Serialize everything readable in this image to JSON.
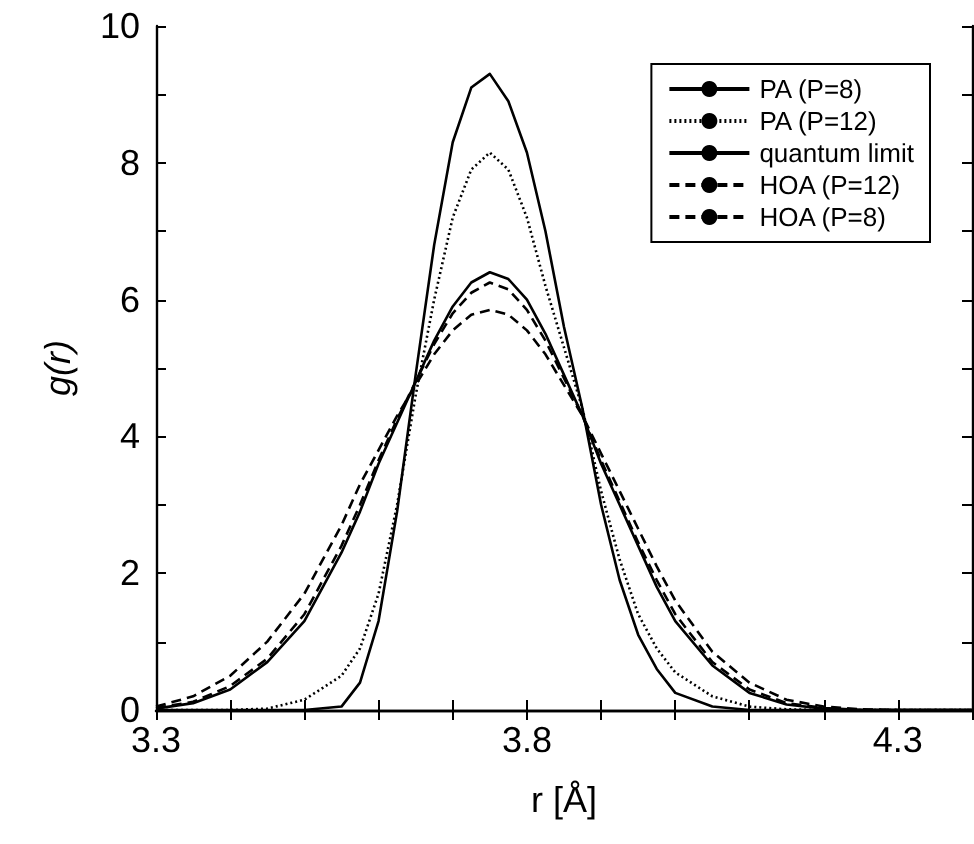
{
  "chart_data": {
    "type": "line",
    "xlabel": "r [Å]",
    "ylabel": "g(r)",
    "x": [
      3.3,
      3.35,
      3.4,
      3.45,
      3.5,
      3.55,
      3.575,
      3.6,
      3.625,
      3.65,
      3.675,
      3.7,
      3.725,
      3.75,
      3.775,
      3.8,
      3.825,
      3.85,
      3.875,
      3.9,
      3.925,
      3.95,
      3.975,
      4.0,
      4.05,
      4.1,
      4.15,
      4.2,
      4.25,
      4.3,
      4.35,
      4.4
    ],
    "series": [
      {
        "name": "PA (P=8)",
        "color": "#000000",
        "line_style": "solid",
        "values": [
          0,
          0,
          0,
          0,
          0,
          0.05,
          0.4,
          1.3,
          2.9,
          4.9,
          6.8,
          8.3,
          9.1,
          9.3,
          8.9,
          8.15,
          7.0,
          5.6,
          4.4,
          3.0,
          1.9,
          1.1,
          0.6,
          0.25,
          0.05,
          0,
          0,
          0,
          0,
          0,
          0,
          0
        ]
      },
      {
        "name": "PA (P=12)",
        "color": "#000000",
        "line_style": "dotted",
        "values": [
          0,
          0,
          0,
          0.02,
          0.15,
          0.5,
          0.9,
          1.7,
          3.0,
          4.6,
          6.0,
          7.2,
          7.9,
          8.15,
          7.9,
          7.2,
          6.2,
          5.3,
          4.4,
          3.2,
          2.2,
          1.4,
          0.9,
          0.55,
          0.2,
          0.05,
          0.01,
          0,
          0,
          0,
          0,
          0
        ]
      },
      {
        "name": "quantum limit",
        "color": "#000000",
        "line_style": "solid",
        "values": [
          0.02,
          0.1,
          0.3,
          0.7,
          1.3,
          2.3,
          2.9,
          3.6,
          4.2,
          4.8,
          5.4,
          5.9,
          6.25,
          6.4,
          6.3,
          6.0,
          5.5,
          4.9,
          4.3,
          3.6,
          3.0,
          2.4,
          1.8,
          1.3,
          0.65,
          0.25,
          0.08,
          0.02,
          0,
          0,
          0,
          0
        ]
      },
      {
        "name": "HOA (P=12)",
        "color": "#000000",
        "line_style": "dashed",
        "values": [
          0.03,
          0.12,
          0.35,
          0.75,
          1.4,
          2.4,
          3.0,
          3.65,
          4.25,
          4.8,
          5.35,
          5.8,
          6.1,
          6.25,
          6.15,
          5.85,
          5.4,
          4.85,
          4.3,
          3.65,
          3.05,
          2.45,
          1.9,
          1.4,
          0.7,
          0.3,
          0.1,
          0.03,
          0,
          0,
          0,
          0
        ]
      },
      {
        "name": "HOA (P=8)",
        "color": "#000000",
        "line_style": "dashed",
        "values": [
          0.05,
          0.2,
          0.5,
          1.0,
          1.7,
          2.7,
          3.3,
          3.8,
          4.3,
          4.75,
          5.2,
          5.55,
          5.78,
          5.85,
          5.78,
          5.55,
          5.2,
          4.75,
          4.3,
          3.75,
          3.2,
          2.65,
          2.1,
          1.6,
          0.85,
          0.4,
          0.15,
          0.05,
          0.01,
          0,
          0,
          0
        ]
      }
    ],
    "xlim": [
      3.3,
      4.4
    ],
    "xticks": [
      3.3,
      {
        "value": 3.4,
        "label": null
      },
      {
        "value": 3.5,
        "label": null
      },
      {
        "value": 3.6,
        "label": null
      },
      {
        "value": 3.7,
        "label": null
      },
      3.8,
      {
        "value": 3.9,
        "label": null
      },
      {
        "value": 4.0,
        "label": null
      },
      {
        "value": 4.1,
        "label": null
      },
      {
        "value": 4.2,
        "label": null
      },
      4.3,
      {
        "value": 4.4,
        "label": null
      }
    ],
    "ylim": [
      0,
      10
    ],
    "yticks": [
      0,
      {
        "value": 1,
        "label": null
      },
      2,
      {
        "value": 3,
        "label": null
      },
      4,
      {
        "value": 5,
        "label": null
      },
      6,
      {
        "value": 7,
        "label": null
      },
      8,
      {
        "value": 9,
        "label": null
      },
      10
    ],
    "grid": false,
    "legend": "top right",
    "marker": "none"
  }
}
